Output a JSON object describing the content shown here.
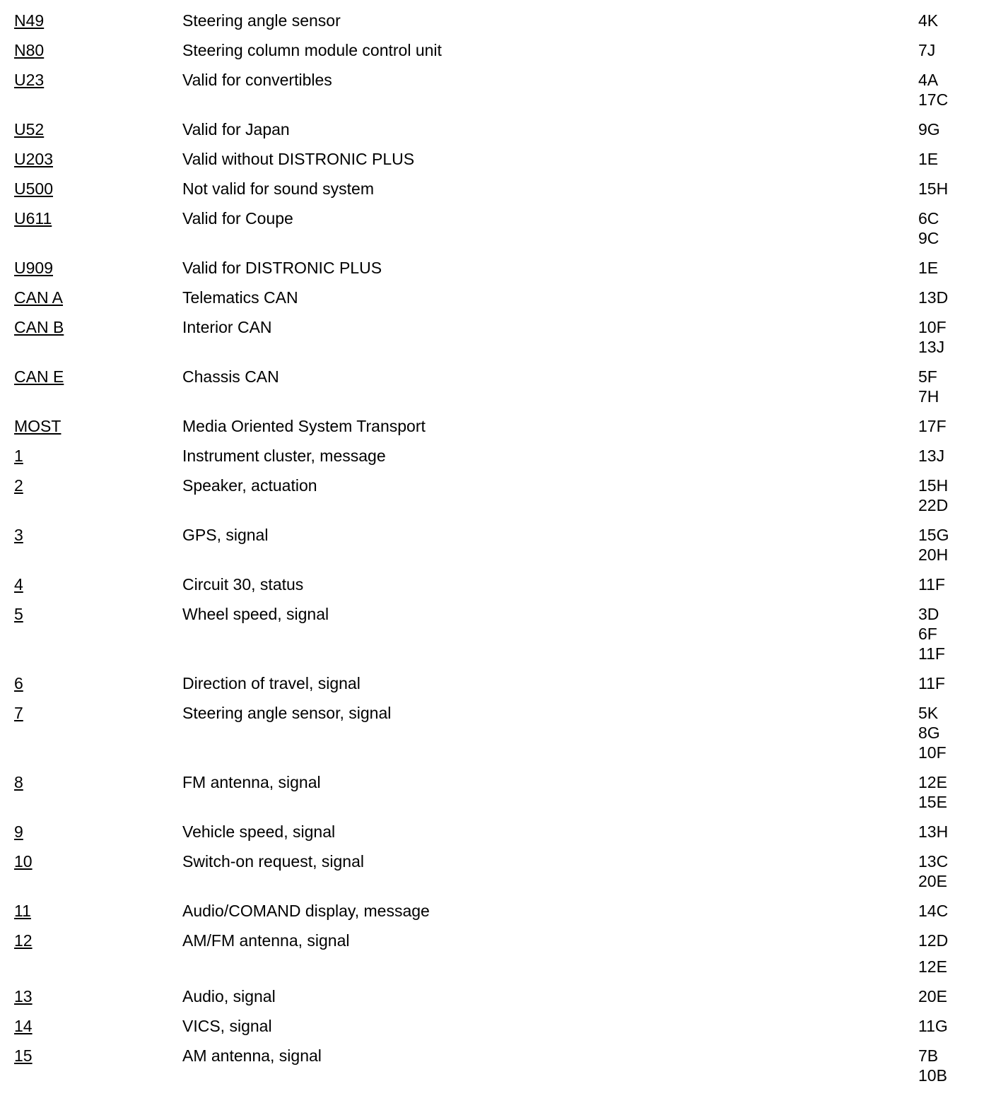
{
  "entries": [
    {
      "code": "N49",
      "description": "Steering angle sensor",
      "refs": [
        "4K"
      ]
    },
    {
      "code": "N80",
      "description": "Steering column module control unit",
      "refs": [
        "7J"
      ]
    },
    {
      "code": "U23",
      "description": "Valid for convertibles",
      "refs": [
        "4A",
        "17C"
      ]
    },
    {
      "code": "U52",
      "description": "Valid for Japan",
      "refs": [
        "9G"
      ]
    },
    {
      "code": "U203",
      "description": "Valid without DISTRONIC PLUS",
      "refs": [
        "1E"
      ]
    },
    {
      "code": "U500",
      "description": "Not valid for sound system",
      "refs": [
        "15H"
      ]
    },
    {
      "code": "U611",
      "description": "Valid for Coupe",
      "refs": [
        "6C",
        "9C"
      ]
    },
    {
      "code": "U909",
      "description": "Valid for DISTRONIC PLUS",
      "refs": [
        "1E"
      ]
    },
    {
      "code": "CAN A",
      "description": "Telematics CAN",
      "refs": [
        "13D"
      ]
    },
    {
      "code": "CAN B",
      "description": "Interior CAN",
      "refs": [
        "10F",
        "13J"
      ]
    },
    {
      "code": "CAN E",
      "description": "Chassis CAN",
      "refs": [
        "5F",
        "7H"
      ]
    },
    {
      "code": "MOST",
      "description": "Media Oriented System Transport",
      "refs": [
        "17F"
      ]
    },
    {
      "code": "1",
      "description": "Instrument cluster, message",
      "refs": [
        "13J"
      ]
    },
    {
      "code": "2",
      "description": "Speaker, actuation",
      "refs": [
        "15H",
        "22D"
      ]
    },
    {
      "code": "3",
      "description": "GPS, signal",
      "refs": [
        "15G",
        "20H"
      ]
    },
    {
      "code": "4",
      "description": "Circuit 30, status",
      "refs": [
        "11F"
      ]
    },
    {
      "code": "5",
      "description": "Wheel speed, signal",
      "refs": [
        "3D",
        "6F",
        "11F"
      ]
    },
    {
      "code": "6",
      "description": "Direction of travel, signal",
      "refs": [
        "11F"
      ]
    },
    {
      "code": "7",
      "description": "Steering angle sensor, signal",
      "refs": [
        "5K",
        "8G",
        "10F"
      ]
    },
    {
      "code": "8",
      "description": "FM antenna, signal",
      "refs": [
        "12E",
        "15E"
      ]
    },
    {
      "code": "9",
      "description": "Vehicle speed, signal",
      "refs": [
        "13H"
      ]
    },
    {
      "code": "10",
      "description": "Switch-on request, signal",
      "refs": [
        "13C",
        "20E"
      ]
    },
    {
      "code": "11",
      "description": "Audio/COMAND display, message",
      "refs": [
        "14C"
      ]
    },
    {
      "code": "12",
      "description": "AM/FM antenna, signal",
      "refs": [
        "12D",
        "12E"
      ],
      "spaced": true
    },
    {
      "code": "13",
      "description": "Audio, signal",
      "refs": [
        "20E"
      ]
    },
    {
      "code": "14",
      "description": "VICS, signal",
      "refs": [
        "11G"
      ]
    },
    {
      "code": "15",
      "description": "AM antenna, signal",
      "refs": [
        "7B",
        "10B"
      ]
    }
  ]
}
